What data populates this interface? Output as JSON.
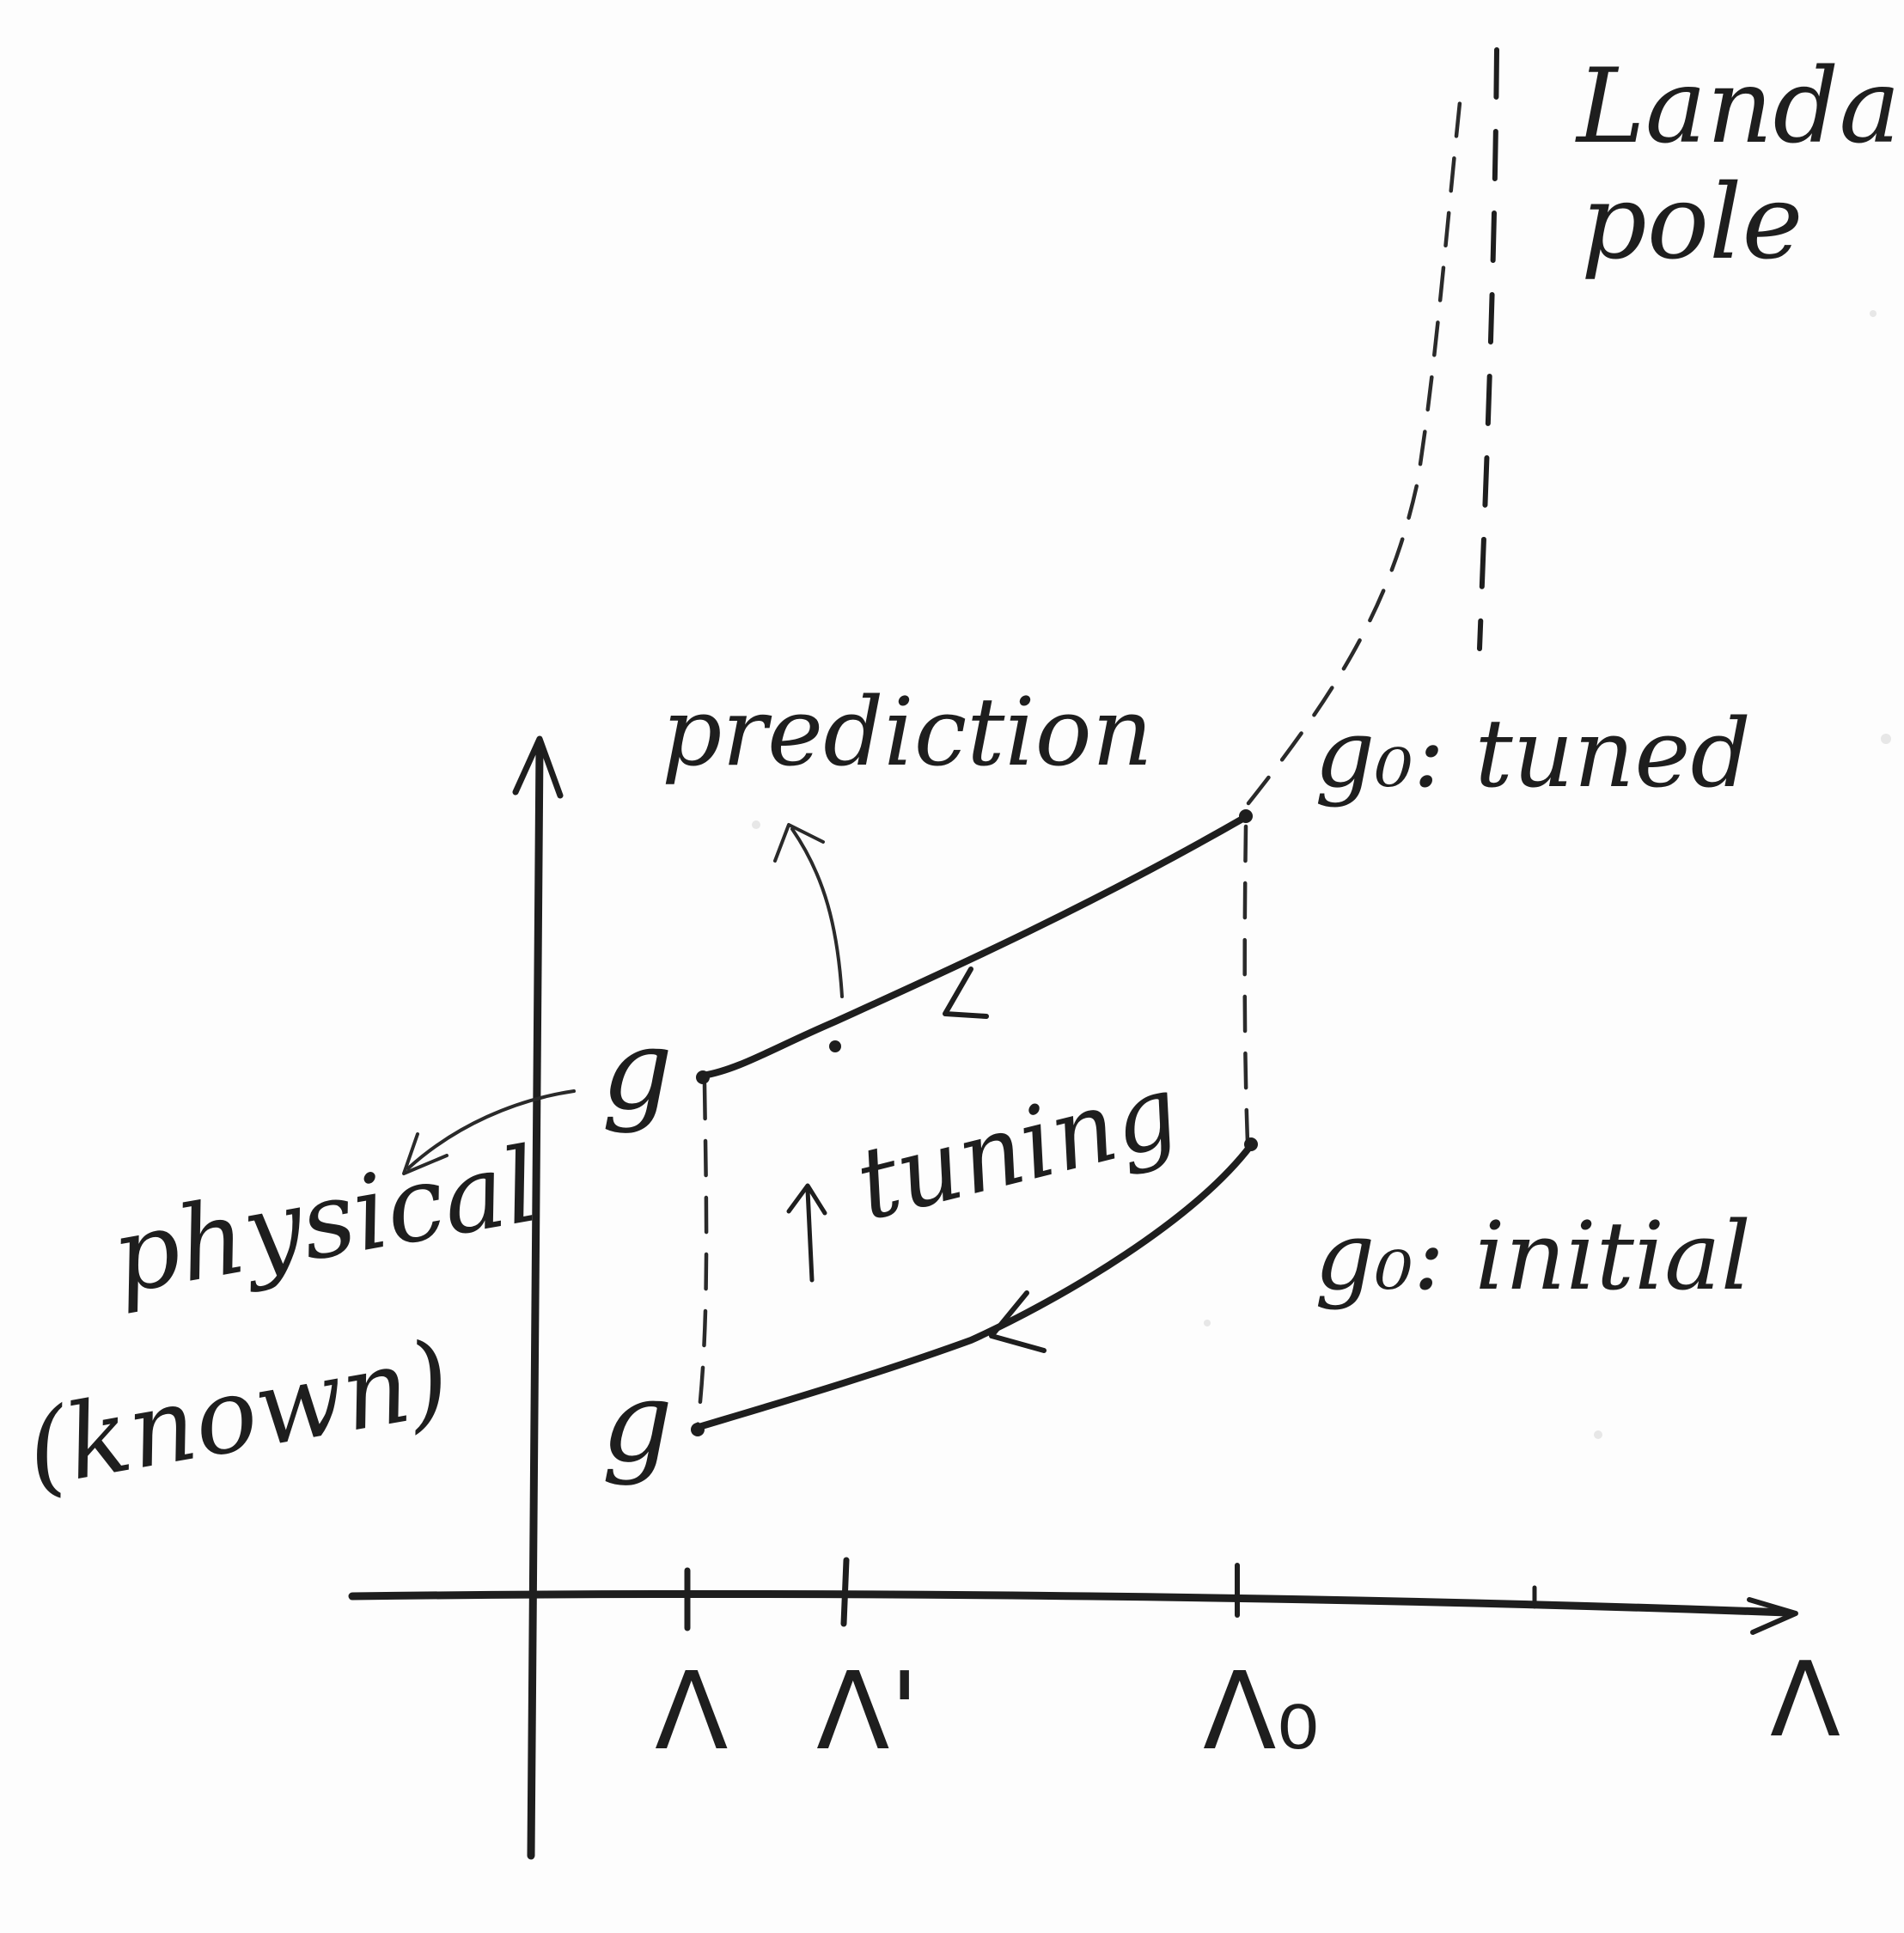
{
  "labels": {
    "landau_line1": "Landau",
    "landau_line2": "pole",
    "prediction": "prediction",
    "g0_tuned": "g₀: tuned",
    "g0_initial": "g₀: initial",
    "tuning": "tuning",
    "physical_line1": "physical",
    "physical_line2": "(known)",
    "g_upper": "g",
    "g_lower": "g",
    "lambda": "Λ",
    "lambda_prime": "Λ'",
    "lambda_0": "Λ₀",
    "lambda_axis": "Λ"
  }
}
